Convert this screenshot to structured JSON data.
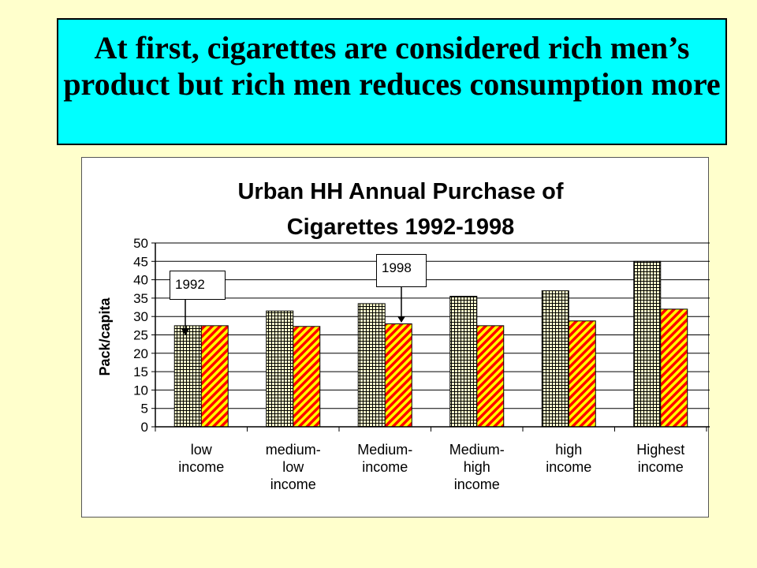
{
  "headline": "At first, cigarettes are considered rich men’s product but rich men reduces  consumption more",
  "chart_data": {
    "type": "bar",
    "title_line1": "Urban HH Annual Purchase of",
    "title_line2": "Cigarettes 1992-1998",
    "xlabel": "",
    "ylabel": "Pack/capita",
    "ylim": [
      0,
      50
    ],
    "yticks": [
      "0",
      "5",
      "10",
      "15",
      "20",
      "25",
      "30",
      "35",
      "40",
      "45",
      "50"
    ],
    "grid": "horizontal",
    "categories": [
      "low\nincome",
      "medium-\nlow\nincome",
      "Medium-\nincome",
      "Medium-\nhigh\nincome",
      "high\nincome",
      "Highest\nincome"
    ],
    "series": [
      {
        "name": "1992",
        "values": [
          27.5,
          31.5,
          33.5,
          35.5,
          37,
          45
        ],
        "color": "#000000",
        "pattern": "grid"
      },
      {
        "name": "1998",
        "values": [
          27.5,
          27.3,
          28,
          27.5,
          28.8,
          32
        ],
        "color": "#ff0000",
        "pattern": "diagonal"
      }
    ],
    "annotations": [
      "1992",
      "1998"
    ]
  }
}
